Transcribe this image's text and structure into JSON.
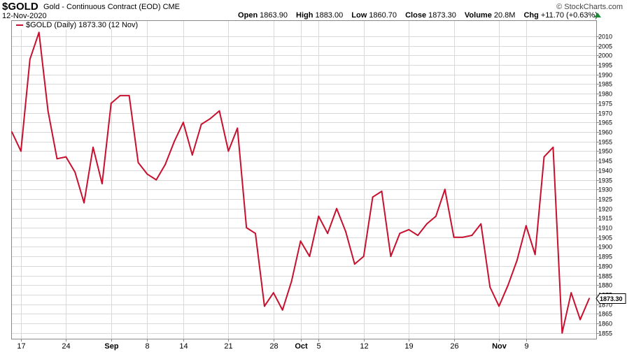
{
  "header": {
    "symbol": "$GOLD",
    "name": "Gold - Continuous Contract (EOD)",
    "exchange": "CME",
    "date": "12-Nov-2020",
    "brand": "© StockCharts.com",
    "stats": {
      "open_label": "Open",
      "open": "1863.90",
      "high_label": "High",
      "high": "1883.00",
      "low_label": "Low",
      "low": "1860.70",
      "close_label": "Close",
      "close": "1873.30",
      "volume_label": "Volume",
      "volume": "20.8M",
      "chg_label": "Chg",
      "chg": "+11.70 (+0.63%)"
    }
  },
  "legend": {
    "label": "$GOLD (Daily) 1873.30 (12 Nov)"
  },
  "colors": {
    "line": "#c8102e",
    "grid": "#d9d9d9",
    "up": "#1f8b3a"
  },
  "chart_data": {
    "type": "line",
    "ylim": [
      1852,
      2018
    ],
    "yticks": [
      1855,
      1860,
      1865,
      1870,
      1875,
      1880,
      1885,
      1890,
      1895,
      1900,
      1905,
      1910,
      1915,
      1920,
      1925,
      1930,
      1935,
      1940,
      1945,
      1950,
      1955,
      1960,
      1965,
      1970,
      1975,
      1980,
      1985,
      1990,
      1995,
      2000,
      2005,
      2010
    ],
    "last_value": "1873.30",
    "xticks": [
      {
        "label": "17",
        "index": 1,
        "bold": false
      },
      {
        "label": "24",
        "index": 6,
        "bold": false
      },
      {
        "label": "Sep",
        "index": 11,
        "bold": true
      },
      {
        "label": "8",
        "index": 15,
        "bold": false
      },
      {
        "label": "14",
        "index": 19,
        "bold": false
      },
      {
        "label": "21",
        "index": 24,
        "bold": false
      },
      {
        "label": "28",
        "index": 29,
        "bold": false
      },
      {
        "label": "Oct",
        "index": 32,
        "bold": true
      },
      {
        "label": "5",
        "index": 34,
        "bold": false
      },
      {
        "label": "12",
        "index": 39,
        "bold": false
      },
      {
        "label": "19",
        "index": 44,
        "bold": false
      },
      {
        "label": "26",
        "index": 49,
        "bold": false
      },
      {
        "label": "Nov",
        "index": 54,
        "bold": true
      },
      {
        "label": "9",
        "index": 57,
        "bold": false
      }
    ],
    "series": [
      {
        "values": [
          1960,
          1950,
          1998,
          2012,
          1971,
          1946,
          1947,
          1939,
          1923,
          1952,
          1933,
          1975,
          1979,
          1979,
          1944,
          1938,
          1935,
          1943,
          1955,
          1965,
          1948,
          1964,
          1967,
          1971,
          1950,
          1962,
          1910,
          1907,
          1869,
          1876,
          1867,
          1882,
          1903,
          1895,
          1916,
          1907,
          1920,
          1908,
          1891,
          1895,
          1926,
          1929,
          1895,
          1907,
          1909,
          1906,
          1912,
          1916,
          1930,
          1905,
          1905,
          1906,
          1912,
          1879,
          1869,
          1880,
          1893,
          1911,
          1896,
          1947,
          1952,
          1855,
          1876,
          1862,
          1873
        ]
      }
    ]
  }
}
